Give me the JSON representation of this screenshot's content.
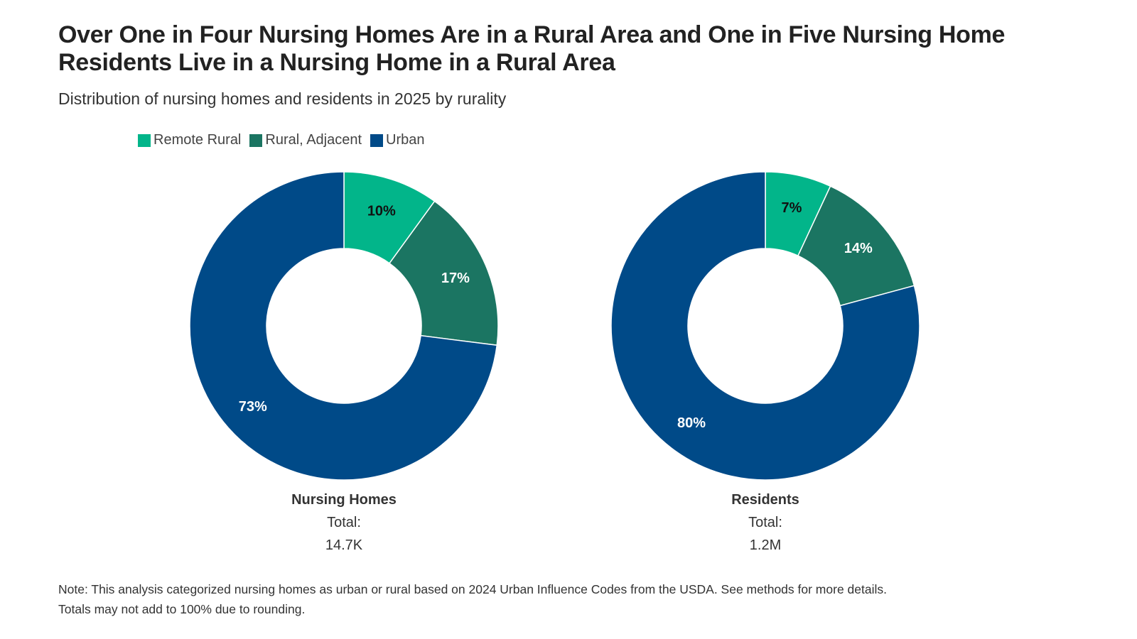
{
  "title": "Over One in Four Nursing Homes Are in a Rural Area and One in Five Nursing Home Residents Live in a Nursing Home in a Rural Area",
  "subtitle": "Distribution of nursing homes and residents in 2025 by rurality",
  "legend": [
    {
      "label": "Remote Rural",
      "color": "#02B58A"
    },
    {
      "label": "Rural, Adjacent",
      "color": "#1B7562"
    },
    {
      "label": "Urban",
      "color": "#004A88"
    }
  ],
  "chart_data": [
    {
      "type": "pie",
      "donut": true,
      "name": "Nursing Homes",
      "total_label": "Total:",
      "total": "14.7K",
      "categories": [
        "Remote Rural",
        "Rural, Adjacent",
        "Urban"
      ],
      "values": [
        10,
        17,
        73
      ],
      "labels": [
        "10%",
        "17%",
        "73%"
      ]
    },
    {
      "type": "pie",
      "donut": true,
      "name": "Residents",
      "total_label": "Total:",
      "total": "1.2M",
      "categories": [
        "Remote Rural",
        "Rural, Adjacent",
        "Urban"
      ],
      "values": [
        7,
        14,
        80
      ],
      "labels": [
        "7%",
        "14%",
        "80%"
      ]
    }
  ],
  "note_line1": "Note: This analysis categorized nursing homes as urban or rural based on 2024 Urban Influence Codes from the USDA. See methods for more details.",
  "note_line2": "Totals may not add to 100% due to rounding."
}
